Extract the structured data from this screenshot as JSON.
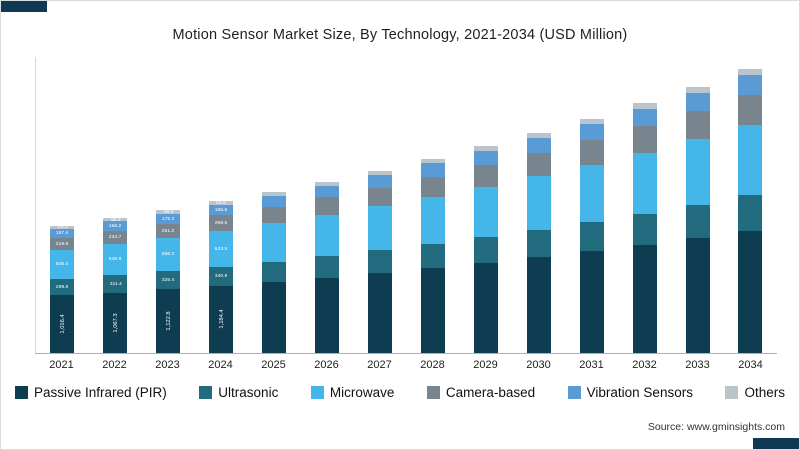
{
  "title": "Motion Sensor Market Size, By Technology, 2021-2034 (USD Million)",
  "source": "Source: www.gminsights.com",
  "accent_color": "#0d3a52",
  "chart_data": {
    "type": "bar",
    "stacked": true,
    "title": "Motion Sensor Market Size, By Technology, 2021-2034 (USD Million)",
    "unit": "USD Million",
    "legend_position": "bottom",
    "y_axis_labels_visible": false,
    "categories": [
      "2021",
      "2022",
      "2023",
      "2024",
      "2025",
      "2026",
      "2027",
      "2028",
      "2029",
      "2030",
      "2031",
      "2032",
      "2033",
      "2034"
    ],
    "series": [
      {
        "name": "Passive Infrared (PIR)",
        "color": "#0e3c50",
        "values": [
          1016.4,
          1067.3,
          1122.8,
          1184.4,
          1254,
          1329,
          1410,
          1496,
          1588,
          1687,
          1793,
          1906,
          2028,
          2158
        ],
        "data_labels": [
          "1,016.4",
          "1,067.3",
          "1,122.8",
          "1,184.4"
        ]
      },
      {
        "name": "Ultrasonic",
        "color": "#226b7e",
        "values": [
          298.6,
          311.4,
          325.4,
          340.9,
          362,
          384,
          408,
          433,
          460,
          489,
          520,
          553,
          588,
          625
        ],
        "data_labels": [
          "298.6",
          "311.4",
          "325.4",
          "340.9"
        ]
      },
      {
        "name": "Microwave",
        "color": "#45b6ea",
        "values": [
          505.4,
          545.9,
          586.3,
          633.5,
          676,
          722,
          771,
          824,
          881,
          942,
          1008,
          1078,
          1154,
          1235
        ],
        "data_labels": [
          "505.4",
          "545.9",
          "586.3",
          "633.5"
        ]
      },
      {
        "name": "Camera-based",
        "color": "#78858f",
        "values": [
          219.6,
          234.7,
          251.2,
          269.6,
          289,
          310,
          332,
          356,
          382,
          410,
          440,
          472,
          507,
          544
        ],
        "data_labels": [
          "219.6",
          "234.7",
          "251.2",
          "269.6"
        ]
      },
      {
        "name": "Vibration Sensors",
        "color": "#5b9bd5",
        "values": [
          157.4,
          166.2,
          175.3,
          186.6,
          198,
          210,
          223,
          237,
          252,
          268,
          285,
          303,
          322,
          342
        ],
        "data_labels": [
          "157.4",
          "166.2",
          "175.3",
          "186.6"
        ]
      },
      {
        "name": "Others",
        "color": "#b9c4cb",
        "values": [
          53.3,
          56.2,
          59.8,
          63.8,
          67,
          71,
          75,
          79,
          83,
          88,
          93,
          98,
          103,
          109
        ],
        "data_labels": [
          "53.3",
          "56.2",
          "59.8",
          "63.8"
        ]
      }
    ]
  }
}
